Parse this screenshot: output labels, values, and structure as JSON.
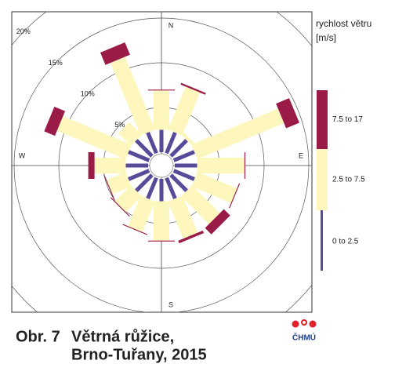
{
  "chart_data": {
    "type": "windrose",
    "categories": [
      "N",
      null,
      null,
      null,
      "E",
      null,
      null,
      null,
      "S",
      null,
      null,
      null,
      "W",
      null,
      null,
      null
    ],
    "rlim": [
      0,
      20
    ],
    "rticks": [
      {
        "value": 5,
        "label": "5%"
      },
      {
        "value": 10,
        "label": "10%"
      },
      {
        "value": 15,
        "label": "15%"
      },
      {
        "value": 20,
        "label": "20%"
      }
    ],
    "legend_title": [
      "rychlost větru",
      "[m/s]"
    ],
    "series": [
      {
        "name": "0 to 2.5",
        "color": "#564a99",
        "values": [
          2.5,
          2.5,
          2.5,
          2.5,
          2.5,
          2.5,
          2.5,
          2.5,
          2.5,
          2.5,
          2.5,
          2.5,
          2.5,
          2.5,
          2.5,
          2.5
        ]
      },
      {
        "name": "2.5 to 7.5",
        "color": "#fdf7bd",
        "values": [
          4.4,
          5.2,
          0.4,
          10.5,
          5.3,
          4.8,
          4.4,
          4.5,
          4.4,
          3.7,
          2.5,
          2.3,
          3.5,
          8.3,
          2.0,
          8.8
        ]
      },
      {
        "name": "7.5 to 17",
        "color": "#9b1b48",
        "values": [
          0.1,
          0.2,
          0,
          1.6,
          0.1,
          0.1,
          1.0,
          0.3,
          0.1,
          0.1,
          0.1,
          0.1,
          0.7,
          1.3,
          0,
          1.5
        ]
      }
    ],
    "caption_label": "Obr. 7",
    "caption_lines": [
      "Větrná růžice,",
      "Brno-Tuřany, 2015"
    ],
    "logo": "ČHMÚ"
  }
}
